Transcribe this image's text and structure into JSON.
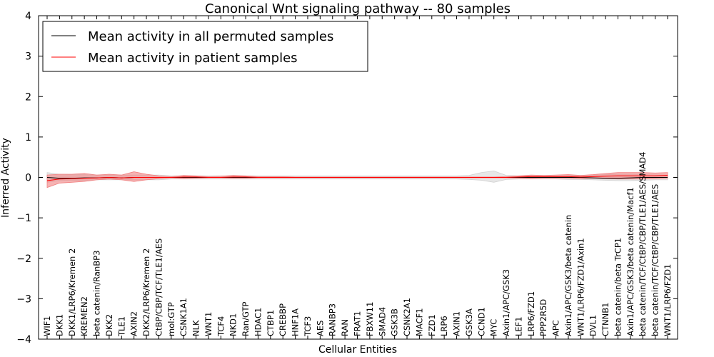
{
  "chart_data": {
    "type": "line",
    "title": "Canonical Wnt signaling pathway -- 80 samples",
    "xlabel": "Cellular Entities",
    "ylabel": "Inferred Activity",
    "ylim": [
      -4,
      4
    ],
    "yticks": [
      {
        "value": 4,
        "label": "4"
      },
      {
        "value": 3,
        "label": "3"
      },
      {
        "value": 2,
        "label": "2"
      },
      {
        "value": 1,
        "label": "1"
      },
      {
        "value": 0,
        "label": "0"
      },
      {
        "value": -1,
        "label": "−1"
      },
      {
        "value": -2,
        "label": "−2"
      },
      {
        "value": -3,
        "label": "−3"
      },
      {
        "value": -4,
        "label": "−4"
      }
    ],
    "grid": false,
    "legend_position": "top-left",
    "colors": {
      "permuted_line": "#000000",
      "permuted_band": "#d3d3d3",
      "patient_line": "#ff0000",
      "patient_band": "#f08080"
    },
    "categories": [
      "WIF1",
      "DKK1",
      "DKK1/LRP6/Kremen 2",
      "KREMEN2",
      "beta catenin/RanBP3",
      "DKK2",
      "TLE1",
      "AXIN2",
      "DKK2/LRP6/Kremen 2",
      "CtBP/CBP/TCF/TLE1/AES",
      "mol:GTP",
      "CSNK1A1",
      "NLK",
      "WNT1",
      "TCF4",
      "NKD1",
      "Ran/GTP",
      "HDAC1",
      "CTBP1",
      "CREBBP",
      "HNF1A",
      "TCF3",
      "AES",
      "RANBP3",
      "RAN",
      "FRAT1",
      "FBXW11",
      "SMAD4",
      "GSK3B",
      "CSNK2A1",
      "MACF1",
      "FZD1",
      "LRP6",
      "AXIN1",
      "GSK3A",
      "CCND1",
      "MYC",
      "Axin1/APC/GSK3",
      "LEF1",
      "LRP6/FZD1",
      "PPP2R5D",
      "APC",
      "Axin1/APC/GSK3/beta catenin",
      "WNT1/LRP6/FZD1/Axin1",
      "DVL1",
      "CTNNB1",
      "beta catenin/beta TrCP1",
      "Axin1/APC/GSK3/beta catenin/Macf1",
      "beta catenin/TCF/CtBP/CBP/TLE1/AES/SMAD4",
      "beta catenin/TCF/CtBP/CBP/TLE1/AES",
      "WNT1/LRP6/FZD1"
    ],
    "series": [
      {
        "name": "Mean activity in all permuted samples",
        "values": [
          0.0,
          -0.02,
          -0.02,
          -0.01,
          -0.01,
          0.0,
          -0.01,
          0.0,
          0.0,
          0.0,
          0.0,
          0.0,
          0.0,
          0.0,
          0.0,
          0.0,
          0.0,
          0.0,
          0.0,
          0.0,
          0.0,
          0.0,
          0.0,
          0.0,
          0.0,
          0.0,
          0.0,
          0.0,
          0.0,
          0.0,
          0.0,
          0.0,
          0.0,
          0.0,
          0.0,
          0.0,
          0.0,
          0.0,
          0.0,
          0.0,
          0.0,
          0.0,
          0.0,
          0.0,
          -0.01,
          -0.02,
          -0.02,
          -0.01,
          0.0,
          0.0,
          0.0
        ],
        "lower": [
          -0.12,
          -0.08,
          -0.07,
          -0.07,
          -0.06,
          -0.06,
          -0.06,
          -0.06,
          -0.06,
          -0.06,
          -0.04,
          -0.04,
          -0.04,
          -0.04,
          -0.04,
          -0.04,
          -0.04,
          -0.04,
          -0.04,
          -0.04,
          -0.04,
          -0.04,
          -0.04,
          -0.04,
          -0.04,
          -0.04,
          -0.04,
          -0.04,
          -0.04,
          -0.04,
          -0.04,
          -0.04,
          -0.04,
          -0.04,
          -0.05,
          -0.07,
          -0.12,
          -0.05,
          -0.04,
          -0.04,
          -0.04,
          -0.04,
          -0.05,
          -0.05,
          -0.06,
          -0.07,
          -0.08,
          -0.08,
          -0.07,
          -0.06,
          -0.06
        ],
        "upper": [
          0.12,
          0.08,
          0.07,
          0.07,
          0.06,
          0.06,
          0.06,
          0.06,
          0.06,
          0.06,
          0.04,
          0.04,
          0.04,
          0.04,
          0.04,
          0.04,
          0.04,
          0.04,
          0.04,
          0.04,
          0.04,
          0.04,
          0.04,
          0.04,
          0.04,
          0.04,
          0.04,
          0.04,
          0.04,
          0.04,
          0.04,
          0.04,
          0.04,
          0.04,
          0.05,
          0.12,
          0.16,
          0.05,
          0.04,
          0.04,
          0.04,
          0.04,
          0.05,
          0.05,
          0.06,
          0.07,
          0.08,
          0.08,
          0.07,
          0.06,
          0.06
        ]
      },
      {
        "name": "Mean activity in patient samples",
        "values": [
          -0.08,
          -0.04,
          -0.03,
          -0.02,
          -0.01,
          0.0,
          -0.01,
          0.0,
          0.0,
          0.0,
          0.0,
          0.01,
          0.01,
          0.0,
          0.0,
          0.01,
          0.01,
          0.0,
          0.0,
          0.0,
          0.0,
          0.0,
          0.0,
          0.0,
          0.0,
          0.0,
          0.0,
          0.0,
          0.0,
          0.0,
          0.0,
          0.0,
          0.0,
          0.0,
          0.0,
          0.0,
          0.0,
          0.0,
          0.01,
          0.02,
          0.02,
          0.02,
          0.02,
          0.01,
          0.02,
          0.03,
          0.04,
          0.04,
          0.04,
          0.04,
          0.05
        ],
        "lower": [
          -0.25,
          -0.14,
          -0.12,
          -0.1,
          -0.06,
          -0.04,
          -0.06,
          -0.1,
          -0.06,
          -0.03,
          -0.01,
          -0.03,
          -0.02,
          -0.01,
          -0.01,
          -0.02,
          -0.02,
          -0.01,
          -0.01,
          -0.01,
          -0.01,
          -0.01,
          -0.01,
          -0.01,
          -0.01,
          -0.01,
          -0.01,
          -0.01,
          -0.01,
          -0.01,
          -0.01,
          -0.01,
          -0.01,
          -0.01,
          -0.01,
          -0.01,
          -0.01,
          -0.01,
          -0.02,
          -0.03,
          -0.02,
          -0.02,
          -0.02,
          -0.03,
          -0.02,
          -0.03,
          -0.04,
          -0.04,
          -0.04,
          -0.03,
          -0.02
        ],
        "upper": [
          0.06,
          0.08,
          0.08,
          0.1,
          0.06,
          0.08,
          0.06,
          0.14,
          0.08,
          0.04,
          0.02,
          0.05,
          0.04,
          0.02,
          0.03,
          0.05,
          0.04,
          0.02,
          0.02,
          0.02,
          0.01,
          0.01,
          0.01,
          0.01,
          0.01,
          0.01,
          0.01,
          0.01,
          0.01,
          0.01,
          0.01,
          0.01,
          0.01,
          0.01,
          0.01,
          0.01,
          0.01,
          0.02,
          0.04,
          0.06,
          0.05,
          0.06,
          0.07,
          0.05,
          0.07,
          0.1,
          0.12,
          0.12,
          0.12,
          0.11,
          0.12
        ]
      }
    ]
  }
}
